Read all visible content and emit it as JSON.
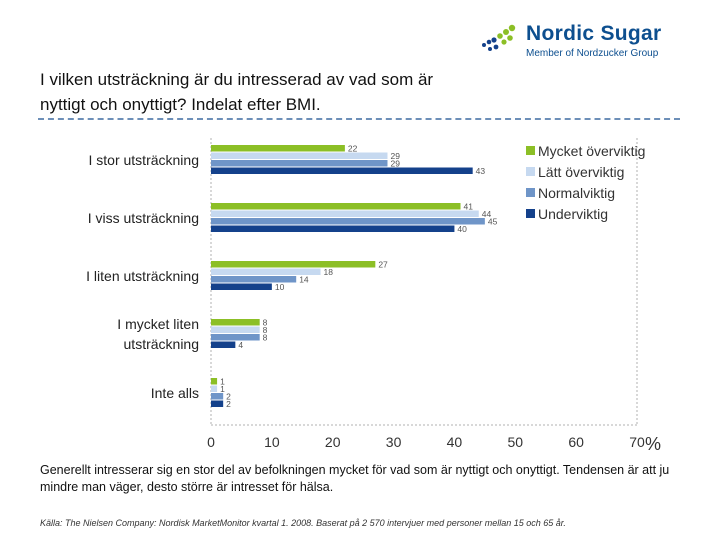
{
  "logo": {
    "name": "Nordic Sugar",
    "tagline": "Member of Nordzucker Group"
  },
  "title": "I vilken utsträckning är du intresserad av vad som är nyttigt och onyttigt? Indelat efter BMI.",
  "chart_data": {
    "type": "bar",
    "orientation": "horizontal",
    "categories": [
      [
        "I stor utsträckning"
      ],
      [
        "I viss utsträckning"
      ],
      [
        "I liten utsträckning"
      ],
      [
        "I mycket liten",
        "utsträckning"
      ],
      [
        "Inte alls"
      ]
    ],
    "series": [
      {
        "name": "Mycket överviktig",
        "color": "#8cbf26",
        "values": [
          22,
          41,
          27,
          8,
          1
        ]
      },
      {
        "name": "Lätt överviktig",
        "color": "#c6d9f0",
        "values": [
          29,
          44,
          18,
          8,
          1
        ]
      },
      {
        "name": "Normalviktig",
        "color": "#6f95c8",
        "values": [
          29,
          45,
          14,
          8,
          2
        ]
      },
      {
        "name": "Underviktig",
        "color": "#14418b",
        "values": [
          43,
          40,
          10,
          4,
          2
        ]
      }
    ],
    "xlim": [
      0,
      70
    ],
    "xticks": [
      "0",
      "10",
      "20",
      "30",
      "40",
      "50",
      "60",
      "70"
    ],
    "unit_label": "%",
    "legend_position": "top-right"
  },
  "footer": {
    "text": "Generellt intresserar sig en stor del av befolkningen mycket för vad som är nyttigt och onyttigt. Tendensen är att ju mindre man väger, desto större är intresset för hälsa.",
    "source": "Källa: The Nielsen Company: Nordisk MarketMonitor kvartal 1. 2008. Baserat på 2 570 intervjuer med personer mellan 15 och 65 år."
  }
}
